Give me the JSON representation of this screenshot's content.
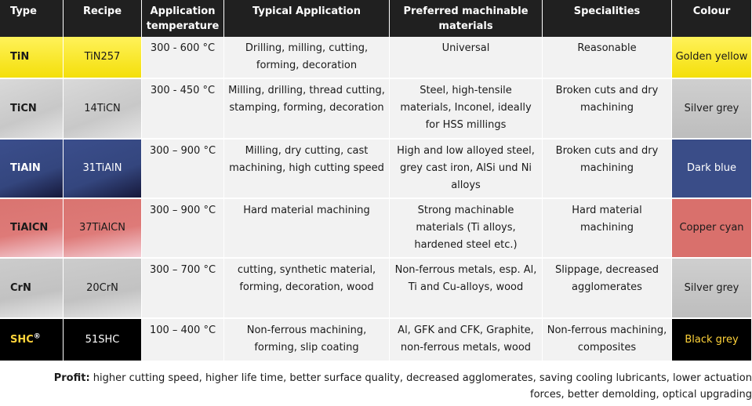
{
  "headers": {
    "type": "Type",
    "recipe": "Recipe",
    "temp": "Application temperature",
    "typical": "Typical Application",
    "materials": "Preferred machinable materials",
    "specialities": "Specialities",
    "colour": "Colour"
  },
  "rows": [
    {
      "type": "TiN",
      "recipe": "TiN257",
      "temp": "300 - 600 °C",
      "typical": "Drilling, milling, cutting, forming, decoration",
      "materials": "Universal",
      "specialities": "Reasonable",
      "colour": "Golden yellow"
    },
    {
      "type": "TiCN",
      "recipe": "14TiCN",
      "temp": "300 - 450 °C",
      "typical": "Milling, drilling, thread cutting, stamping, forming, decoration",
      "materials": "Steel, high-tensile materials, Inconel, ideally for HSS millings",
      "specialities": "Broken cuts and dry machining",
      "colour": "Silver grey"
    },
    {
      "type": "TiAlN",
      "recipe": "31TiAlN",
      "temp": "300 – 900 °C",
      "typical": "Milling, dry cutting, cast machining, high cutting speed",
      "materials": "High and low alloyed steel, grey cast iron, AlSi und Ni alloys",
      "specialities": "Broken cuts and dry machining",
      "colour": "Dark blue"
    },
    {
      "type": "TiAlCN",
      "recipe": "37TiAlCN",
      "temp": "300 – 900 °C",
      "typical": "Hard material machining",
      "materials": "Strong machinable materials (Ti alloys, hardened steel etc.)",
      "specialities": "Hard material machining",
      "colour": "Copper cyan"
    },
    {
      "type": "CrN",
      "recipe": "20CrN",
      "temp": "300 – 700 °C",
      "typical": "cutting, synthetic material, forming, decoration, wood",
      "materials": "Non-ferrous metals, esp. Al, Ti and Cu-alloys, wood",
      "specialities": "Slippage, decreased agglomerates",
      "colour": "Silver grey"
    },
    {
      "type": "SHC",
      "type_sup": "®",
      "recipe": "51SHC",
      "temp": "100 – 400 °C",
      "typical": "Non-ferrous machining, forming, slip coating",
      "materials": "Al, GFK and CFK, Graphite, non-ferrous metals, wood",
      "specialities": "Non-ferrous machining, composites",
      "colour": "Black grey"
    }
  ],
  "profit": {
    "label": "Profit:",
    "text": " higher cutting speed, higher life time, better surface quality, decreased agglomerates, saving cooling lubricants, lower actuation forces, better demolding, optical upgrading"
  }
}
